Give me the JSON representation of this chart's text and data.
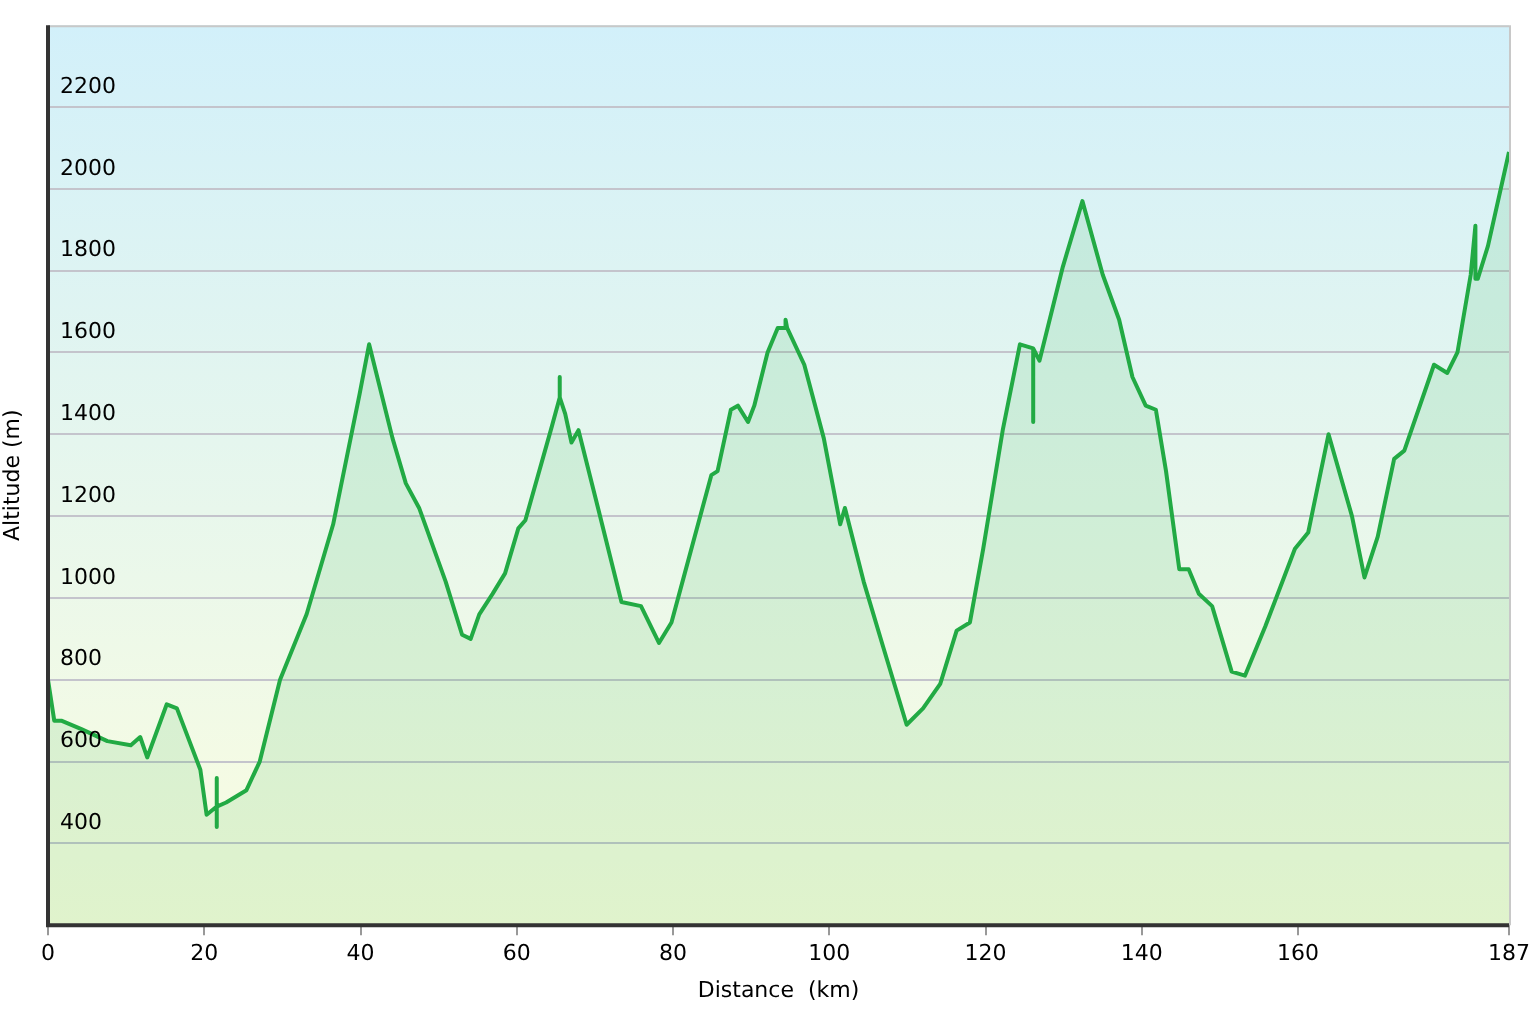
{
  "chart_data": {
    "type": "area",
    "xlabel": "Distance  (km)",
    "ylabel": "Altitude (m)",
    "x": [
      0,
      0.8,
      1.7,
      4.2,
      7.6,
      10.6,
      11.8,
      12.7,
      15.2,
      16.5,
      19.5,
      20.3,
      21.6,
      21.6,
      21.6,
      21.6,
      22.8,
      25.4,
      27.1,
      29.7,
      33.1,
      36.5,
      39.9,
      41.1,
      44.1,
      45.8,
      47.5,
      50.9,
      53,
      54.1,
      55.2,
      56.9,
      58.5,
      60.2,
      61.1,
      64.5,
      65.5,
      65.5,
      65.5,
      66.2,
      67,
      67.9,
      70.4,
      73.4,
      75.9,
      78.2,
      79.8,
      81.5,
      84.9,
      85.7,
      87.4,
      88.3,
      89.6,
      90.4,
      92.1,
      93.4,
      94.4,
      94.4,
      94.6,
      96.8,
      99.3,
      101.4,
      102,
      104.4,
      106.9,
      109.9,
      112,
      114.2,
      116.3,
      118,
      119.7,
      122.2,
      124.4,
      126.1,
      126.1,
      126.1,
      126.9,
      129.9,
      132.4,
      135,
      137.1,
      138.8,
      140.5,
      141.8,
      143.1,
      144.8,
      146,
      147.3,
      149,
      151.5,
      153.2,
      155.8,
      159.6,
      161.3,
      163.9,
      166.9,
      168.5,
      170.2,
      172.3,
      173.6,
      177.4,
      179.1,
      180.4,
      182.1,
      182.7,
      182.7,
      183,
      184.3,
      187
    ],
    "series": [
      {
        "color": "#22aa44",
        "values": [
          800,
          700,
          700,
          680,
          650,
          640,
          660,
          610,
          740,
          730,
          580,
          470,
          490,
          560,
          440,
          490,
          500,
          530,
          600,
          800,
          960,
          1180,
          1500,
          1620,
          1390,
          1280,
          1220,
          1040,
          910,
          900,
          960,
          1010,
          1060,
          1170,
          1190,
          1420,
          1490,
          1540,
          1490,
          1450,
          1380,
          1410,
          1220,
          990,
          980,
          890,
          940,
          1060,
          1300,
          1310,
          1460,
          1470,
          1430,
          1470,
          1600,
          1660,
          1660,
          1680,
          1660,
          1570,
          1390,
          1180,
          1220,
          1040,
          880,
          690,
          730,
          790,
          920,
          940,
          1120,
          1410,
          1620,
          1610,
          1430,
          1610,
          1580,
          1810,
          1970,
          1790,
          1680,
          1540,
          1470,
          1460,
          1310,
          1070,
          1070,
          1010,
          980,
          820,
          810,
          930,
          1120,
          1160,
          1400,
          1200,
          1050,
          1150,
          1340,
          1360,
          1570,
          1550,
          1600,
          1790,
          1910,
          1780,
          1780,
          1860,
          2090
        ]
      }
    ],
    "xlim": [
      0,
      187
    ],
    "xticks": [
      0,
      20,
      40,
      60,
      80,
      100,
      120,
      140,
      160,
      187
    ],
    "ylim": [
      200,
      2400
    ],
    "yticks": [
      400,
      600,
      800,
      1000,
      1200,
      1400,
      1600,
      1800,
      2000,
      2200
    ],
    "grid": "y",
    "legend": false
  }
}
